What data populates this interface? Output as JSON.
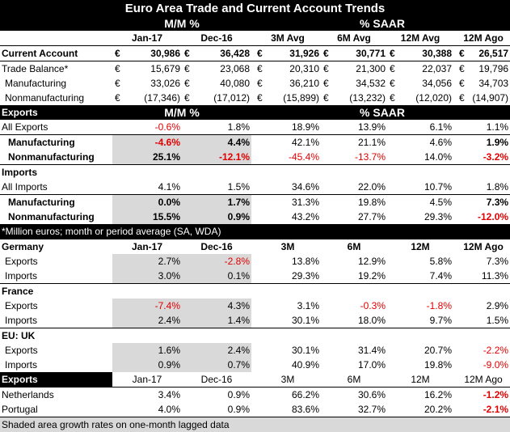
{
  "title": "Euro Area Trade and Current Account Trends",
  "headers": {
    "mm": "M/M %",
    "saar": "% SAAR"
  },
  "columns": [
    "Jan-17",
    "Dec-16",
    "3M Avg",
    "6M Avg",
    "12M Avg",
    "12M Ago"
  ],
  "currency_symbol": "€",
  "euro_rows": [
    {
      "label": "Current Account",
      "values": [
        "30,986",
        "36,428",
        "31,926",
        "30,771",
        "30,388",
        "26,517"
      ],
      "bold": true
    },
    {
      "label": "Trade Balance*",
      "values": [
        "15,679",
        "23,068",
        "20,310",
        "21,300",
        "22,037",
        "19,796"
      ],
      "bold": false
    },
    {
      "label": "Manufacturing",
      "values": [
        "33,026",
        "40,080",
        "36,210",
        "34,532",
        "34,056",
        "34,703"
      ],
      "bold": false
    },
    {
      "label": "Nonmanufacturing",
      "values": [
        "(17,346)",
        "(17,012)",
        "(15,899)",
        "(13,232)",
        "(12,020)",
        "(14,907)"
      ],
      "bold": false
    }
  ],
  "exports": {
    "label": "Exports",
    "mm": "M/M %",
    "saar": "% SAAR",
    "rows": [
      {
        "label": "All Exports",
        "values": [
          "-0.6%",
          "1.8%",
          "18.9%",
          "13.9%",
          "6.1%",
          "1.1%"
        ]
      },
      {
        "label": "Manufacturing",
        "values": [
          "-4.6%",
          "4.4%",
          "42.1%",
          "21.1%",
          "4.6%",
          "1.9%"
        ]
      },
      {
        "label": "Nonmanufacturing",
        "values": [
          "25.1%",
          "-12.1%",
          "-45.4%",
          "-13.7%",
          "14.0%",
          "-3.2%"
        ]
      }
    ]
  },
  "imports": {
    "label": "Imports",
    "rows": [
      {
        "label": "All Imports",
        "values": [
          "4.1%",
          "1.5%",
          "34.6%",
          "22.0%",
          "10.7%",
          "1.8%"
        ]
      },
      {
        "label": "Manufacturing",
        "values": [
          "0.0%",
          "1.7%",
          "31.3%",
          "19.8%",
          "4.5%",
          "7.3%"
        ]
      },
      {
        "label": "Nonmanufacturing",
        "values": [
          "15.5%",
          "0.9%",
          "43.2%",
          "27.7%",
          "29.3%",
          "-12.0%"
        ]
      }
    ]
  },
  "note_million": "*Million euros; month or period average (SA, WDA)",
  "country_columns": [
    "Jan-17",
    "Dec-16",
    "3M",
    "6M",
    "12M",
    "12M Ago"
  ],
  "countries": [
    {
      "name": "Germany",
      "rows": [
        {
          "label": "Exports",
          "values": [
            "2.7%",
            "-2.8%",
            "13.8%",
            "12.9%",
            "5.8%",
            "7.3%"
          ]
        },
        {
          "label": "Imports",
          "values": [
            "3.0%",
            "0.1%",
            "29.3%",
            "19.2%",
            "7.4%",
            "11.3%"
          ]
        }
      ]
    },
    {
      "name": "France",
      "rows": [
        {
          "label": "Exports",
          "values": [
            "-7.4%",
            "4.3%",
            "3.1%",
            "-0.3%",
            "-1.8%",
            "2.9%"
          ]
        },
        {
          "label": "Imports",
          "values": [
            "2.4%",
            "1.4%",
            "30.1%",
            "18.0%",
            "9.7%",
            "1.5%"
          ]
        }
      ]
    },
    {
      "name": "EU: UK",
      "rows": [
        {
          "label": "Exports",
          "values": [
            "1.6%",
            "2.4%",
            "30.1%",
            "31.4%",
            "20.7%",
            "-2.2%"
          ]
        },
        {
          "label": "Imports",
          "values": [
            "0.9%",
            "0.7%",
            "40.9%",
            "17.0%",
            "19.8%",
            "-9.0%"
          ]
        }
      ]
    }
  ],
  "exports_table": {
    "label": "Exports",
    "columns": [
      "Jan-17",
      "Dec-16",
      "3M",
      "6M",
      "12M",
      "12M Ago"
    ],
    "rows": [
      {
        "label": "Netherlands",
        "values": [
          "3.4%",
          "0.9%",
          "66.2%",
          "30.6%",
          "16.2%",
          "-1.2%"
        ]
      },
      {
        "label": "Portugal",
        "values": [
          "4.0%",
          "0.9%",
          "83.6%",
          "32.7%",
          "20.2%",
          "-2.1%"
        ]
      }
    ]
  },
  "note_shaded": "Shaded area growth rates on one-month lagged data"
}
